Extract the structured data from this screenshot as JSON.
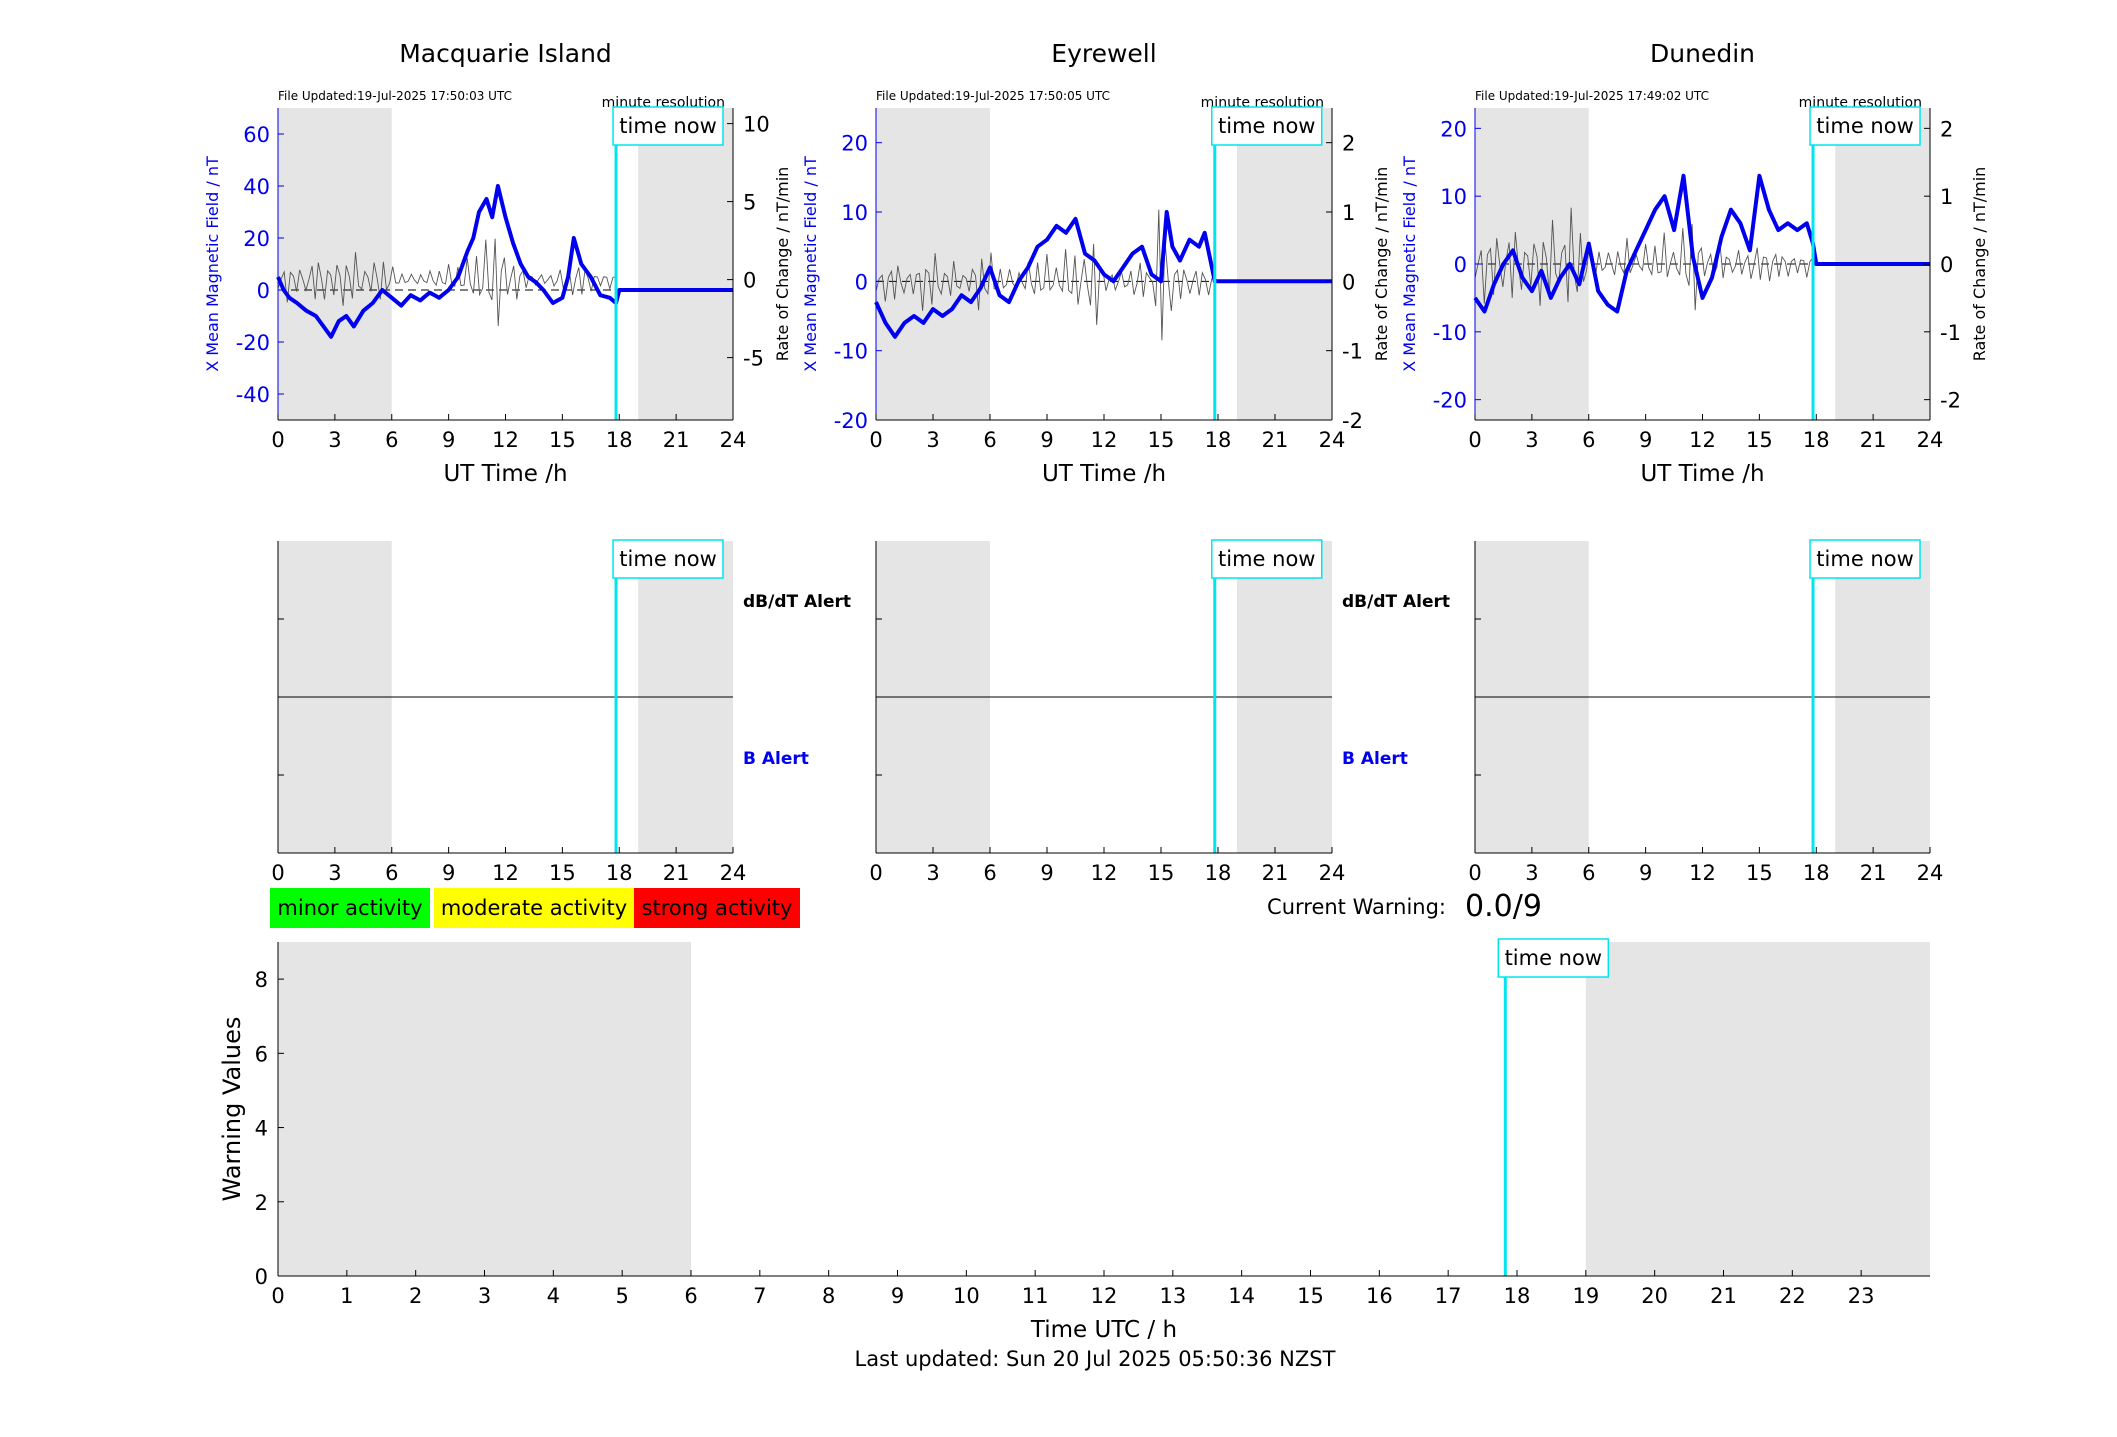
{
  "colors": {
    "field_line": "#0000ee",
    "roc_line": "#555555",
    "time_now": "#00e5ee",
    "shade": "#e5e5e5",
    "minor": "#00ff00",
    "moderate": "#ffff00",
    "strong": "#ff0000"
  },
  "time_now_box": "time now",
  "resolution_label": "minute resolution",
  "time_axis_ticks": [
    "0",
    "3",
    "6",
    "9",
    "12",
    "15",
    "18",
    "21",
    "24"
  ],
  "alerts": {
    "dbdt_label": "dB/dT Alert",
    "b_label": "B Alert"
  },
  "legend": {
    "minor": "minor activity",
    "moderate": "moderate activity",
    "strong": "strong activity"
  },
  "current_warning": {
    "label": "Current Warning:",
    "value": "0.0/9"
  },
  "last_updated": "Last updated: Sun 20 Jul 2025 05:50:36 NZST",
  "chart_data": [
    {
      "type": "line",
      "title": "Macquarie Island",
      "file_updated": "File Updated:19-Jul-2025 17:50:03 UTC",
      "xlabel": "UT Time /h",
      "ylabel_left": "X Mean Magnetic Field / nT",
      "ylabel_right": "Rate of Change / nT/min",
      "xlim": [
        0,
        24
      ],
      "ylim_left": [
        -50,
        70
      ],
      "yticks_left": [
        "-40",
        "-20",
        "0",
        "20",
        "40",
        "60"
      ],
      "ylim_right": [
        -9,
        11
      ],
      "yticks_right": [
        "-5",
        "0",
        "5",
        "10"
      ],
      "shaded_hours": [
        [
          0,
          6
        ],
        [
          19,
          24
        ]
      ],
      "time_now": 17.83,
      "series": [
        {
          "role": "field",
          "x": [
            0,
            0.3,
            0.6,
            1,
            1.5,
            2,
            2.5,
            2.8,
            3.2,
            3.6,
            4,
            4.5,
            5,
            5.5,
            6,
            6.5,
            7,
            7.5,
            8,
            8.5,
            9,
            9.5,
            10,
            10.3,
            10.6,
            11,
            11.3,
            11.6,
            12,
            12.4,
            12.8,
            13.2,
            13.6,
            14,
            14.5,
            15,
            15.3,
            15.6,
            16,
            16.5,
            17,
            17.5,
            17.83,
            18,
            24
          ],
          "y": [
            5,
            0,
            -3,
            -5,
            -8,
            -10,
            -15,
            -18,
            -12,
            -10,
            -14,
            -8,
            -5,
            0,
            -3,
            -6,
            -2,
            -4,
            -1,
            -3,
            0,
            5,
            15,
            20,
            30,
            35,
            28,
            40,
            28,
            18,
            10,
            5,
            3,
            0,
            -5,
            -3,
            5,
            20,
            10,
            5,
            -2,
            -3,
            -5,
            0,
            0
          ]
        },
        {
          "role": "rate_of_change",
          "x": [
            0,
            0.5,
            1,
            1.5,
            2,
            2.5,
            3,
            3.5,
            4,
            4.5,
            5,
            5.5,
            6,
            6.5,
            7,
            7.5,
            8,
            8.5,
            9,
            9.5,
            10,
            10.5,
            11,
            11.5,
            12,
            12.5,
            13,
            13.5,
            14,
            14.5,
            15,
            15.5,
            16,
            16.5,
            17,
            17.5,
            17.83
          ],
          "y": [
            0.8,
            -1.5,
            1.2,
            -0.8,
            2,
            -1.6,
            1.8,
            -2.2,
            2.4,
            -1.2,
            1.6,
            -2,
            1,
            -0.6,
            0.4,
            -0.5,
            0.6,
            -0.8,
            1,
            -1.2,
            1.5,
            -2.4,
            3,
            -4.5,
            2.2,
            -1.8,
            1,
            -0.5,
            0.5,
            -0.6,
            1,
            -1.2,
            1.5,
            -0.8,
            0.6,
            -0.6,
            0.2
          ]
        }
      ]
    },
    {
      "type": "line",
      "title": "Eyrewell",
      "file_updated": "File Updated:19-Jul-2025 17:50:05 UTC",
      "xlabel": "UT Time /h",
      "ylabel_left": "X Mean Magnetic Field / nT",
      "ylabel_right": "Rate of Change / nT/min",
      "xlim": [
        0,
        24
      ],
      "ylim_left": [
        -20,
        25
      ],
      "yticks_left": [
        "-20",
        "-10",
        "0",
        "10",
        "20"
      ],
      "ylim_right": [
        -2,
        2.5
      ],
      "yticks_right": [
        "-2",
        "-1",
        "0",
        "1",
        "2"
      ],
      "shaded_hours": [
        [
          0,
          6
        ],
        [
          19,
          24
        ]
      ],
      "time_now": 17.83,
      "series": [
        {
          "role": "field",
          "x": [
            0,
            0.5,
            1,
            1.5,
            2,
            2.5,
            3,
            3.5,
            4,
            4.5,
            5,
            5.5,
            6,
            6.5,
            7,
            7.5,
            8,
            8.5,
            9,
            9.5,
            10,
            10.5,
            11,
            11.5,
            12,
            12.5,
            13,
            13.5,
            14,
            14.5,
            15,
            15.3,
            15.6,
            16,
            16.5,
            17,
            17.3,
            17.83,
            18,
            24
          ],
          "y": [
            -3,
            -6,
            -8,
            -6,
            -5,
            -6,
            -4,
            -5,
            -4,
            -2,
            -3,
            -1,
            2,
            -2,
            -3,
            0,
            2,
            5,
            6,
            8,
            7,
            9,
            4,
            3,
            1,
            0,
            2,
            4,
            5,
            1,
            0,
            10,
            5,
            3,
            6,
            5,
            7,
            0,
            0,
            0
          ]
        },
        {
          "role": "rate_of_change",
          "x": [
            0,
            0.5,
            1,
            1.5,
            2,
            2.5,
            3,
            3.5,
            4,
            4.5,
            5,
            5.5,
            6,
            6.5,
            7,
            7.5,
            8,
            8.5,
            9,
            9.5,
            10,
            10.5,
            11,
            11.5,
            12,
            12.5,
            13,
            13.5,
            14,
            14.5,
            15,
            15.5,
            16,
            16.5,
            17,
            17.5,
            17.83
          ],
          "y": [
            0.2,
            -0.3,
            0.4,
            -0.2,
            0.3,
            -0.5,
            0.6,
            -0.3,
            0.4,
            -0.2,
            0.3,
            -0.6,
            0.5,
            -0.3,
            0.2,
            -0.2,
            0.3,
            -0.4,
            0.4,
            -0.3,
            0.5,
            -0.6,
            0.4,
            -0.9,
            0.3,
            -0.2,
            0.2,
            -0.3,
            0.4,
            -0.2,
            1.4,
            -0.5,
            0.4,
            -0.2,
            0.3,
            -0.2,
            0.1
          ]
        }
      ]
    },
    {
      "type": "line",
      "title": "Dunedin",
      "file_updated": "File Updated:19-Jul-2025 17:49:02 UTC",
      "xlabel": "UT Time /h",
      "ylabel_left": "X Mean Magnetic Field / nT",
      "ylabel_right": "Rate of Change / nT/min",
      "xlim": [
        0,
        24
      ],
      "ylim_left": [
        -23,
        23
      ],
      "yticks_left": [
        "-20",
        "-10",
        "0",
        "10",
        "20"
      ],
      "ylim_right": [
        -2.3,
        2.3
      ],
      "yticks_right": [
        "-2",
        "-1",
        "0",
        "1",
        "2"
      ],
      "shaded_hours": [
        [
          0,
          6
        ],
        [
          19,
          24
        ]
      ],
      "time_now": 17.83,
      "series": [
        {
          "role": "field",
          "x": [
            0,
            0.5,
            1,
            1.5,
            2,
            2.5,
            3,
            3.5,
            4,
            4.5,
            5,
            5.5,
            6,
            6.5,
            7,
            7.5,
            8,
            8.5,
            9,
            9.5,
            10,
            10.5,
            11,
            11.5,
            12,
            12.5,
            13,
            13.5,
            14,
            14.5,
            15,
            15.5,
            16,
            16.5,
            17,
            17.5,
            17.83,
            18,
            24
          ],
          "y": [
            -5,
            -7,
            -3,
            0,
            2,
            -2,
            -4,
            -1,
            -5,
            -2,
            0,
            -3,
            3,
            -4,
            -6,
            -7,
            -1,
            2,
            5,
            8,
            10,
            5,
            13,
            1,
            -5,
            -2,
            4,
            8,
            6,
            2,
            13,
            8,
            5,
            6,
            5,
            6,
            3,
            0,
            0
          ]
        },
        {
          "role": "rate_of_change",
          "x": [
            0,
            0.5,
            1,
            1.5,
            2,
            2.5,
            3,
            3.5,
            4,
            4.5,
            5,
            5.5,
            6,
            6.5,
            7,
            7.5,
            8,
            8.5,
            9,
            9.5,
            10,
            10.5,
            11,
            11.5,
            12,
            12.5,
            13,
            13.5,
            14,
            14.5,
            15,
            15.5,
            16,
            16.5,
            17,
            17.5,
            17.83
          ],
          "y": [
            0.3,
            -0.6,
            0.7,
            -0.4,
            0.8,
            -0.5,
            0.6,
            -0.8,
            0.9,
            -0.5,
            1.1,
            -0.8,
            0.4,
            -0.3,
            0.2,
            -0.3,
            0.4,
            -0.2,
            0.3,
            -0.4,
            0.5,
            -0.3,
            0.6,
            -1,
            0.4,
            -0.3,
            0.4,
            -0.2,
            0.3,
            -0.3,
            0.4,
            -0.3,
            0.3,
            -0.2,
            0.2,
            -0.2,
            0.1
          ]
        }
      ]
    },
    {
      "type": "line",
      "title": "",
      "xlabel": "Time UTC / h",
      "ylabel": "Warning Values",
      "xlim": [
        0,
        24
      ],
      "xticks": [
        "0",
        "1",
        "2",
        "3",
        "4",
        "5",
        "6",
        "7",
        "8",
        "9",
        "10",
        "11",
        "12",
        "13",
        "14",
        "15",
        "16",
        "17",
        "18",
        "19",
        "20",
        "21",
        "22",
        "23"
      ],
      "ylim": [
        0,
        9
      ],
      "yticks": [
        "0",
        "2",
        "4",
        "6",
        "8"
      ],
      "shaded_hours": [
        [
          0,
          6
        ],
        [
          19,
          24
        ]
      ],
      "time_now": 17.83,
      "series": []
    }
  ]
}
